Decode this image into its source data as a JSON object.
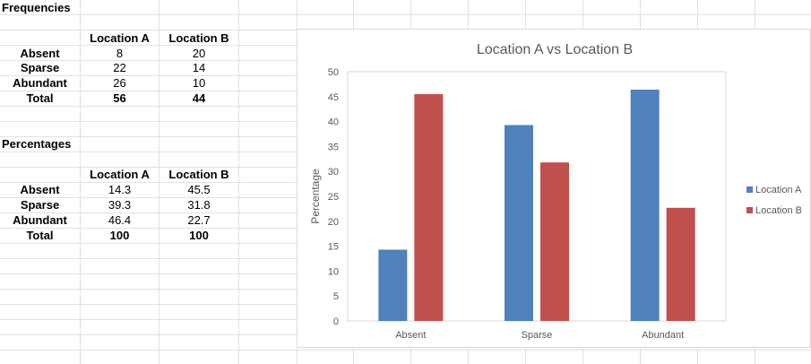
{
  "frequencies": {
    "title": "Frequencies",
    "col_a": "Location A",
    "col_b": "Location B",
    "rows": [
      {
        "label": "Absent",
        "a": "8",
        "b": "20"
      },
      {
        "label": "Sparse",
        "a": "22",
        "b": "14"
      },
      {
        "label": "Abundant",
        "a": "26",
        "b": "10"
      }
    ],
    "total": {
      "label": "Total",
      "a": "56",
      "b": "44"
    }
  },
  "percentages": {
    "title": "Percentages",
    "col_a": "Location A",
    "col_b": "Location B",
    "rows": [
      {
        "label": "Absent",
        "a": "14.3",
        "b": "45.5"
      },
      {
        "label": "Sparse",
        "a": "39.3",
        "b": "31.8"
      },
      {
        "label": "Abundant",
        "a": "46.4",
        "b": "22.7"
      }
    ],
    "total": {
      "label": "Total",
      "a": "100",
      "b": "100"
    }
  },
  "chart_data": {
    "type": "bar",
    "title": "Location A vs Location B",
    "xlabel": "",
    "ylabel": "Percentage",
    "categories": [
      "Absent",
      "Sparse",
      "Abundant"
    ],
    "series": [
      {
        "name": "Location A",
        "values": [
          14.3,
          39.3,
          46.4
        ],
        "color": "#4f81bd"
      },
      {
        "name": "Location B",
        "values": [
          45.5,
          31.8,
          22.7
        ],
        "color": "#c0504d"
      }
    ],
    "ylim": [
      0,
      50
    ],
    "yticks": [
      "0",
      "5",
      "10",
      "15",
      "20",
      "25",
      "30",
      "35",
      "40",
      "45",
      "50"
    ],
    "grid": false,
    "legend": "right"
  }
}
